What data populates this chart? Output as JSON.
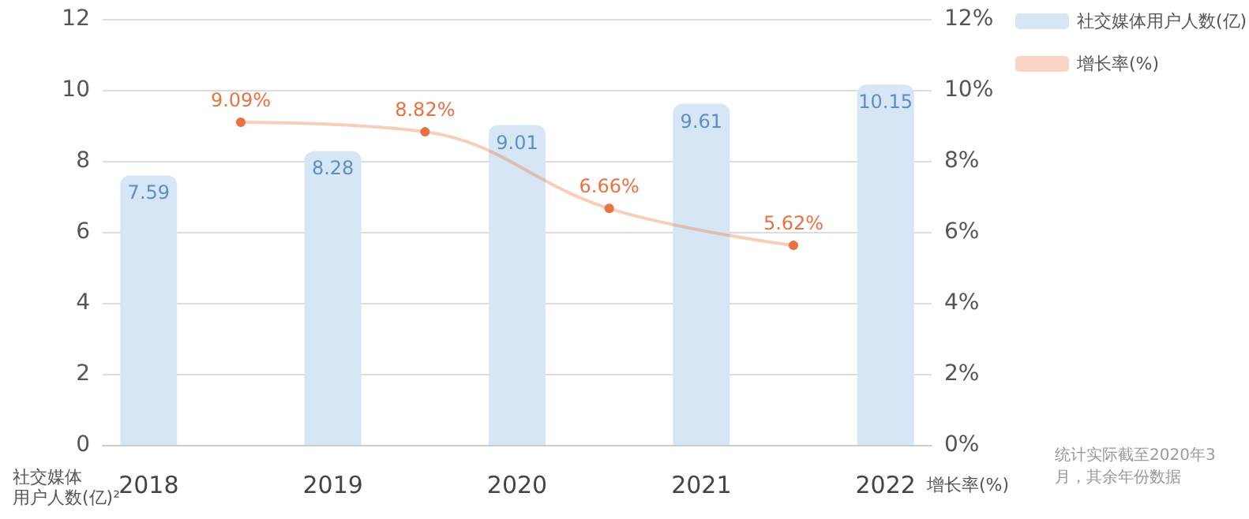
{
  "chart_data": {
    "type": "bar",
    "categories": [
      "2018",
      null,
      "2019",
      null,
      "2020",
      null,
      "2021",
      null,
      "2022"
    ],
    "series": [
      {
        "name": "社交媒体用户人数(亿)",
        "color": "#d6e6f5",
        "values": [
          7.59,
          null,
          8.28,
          null,
          9.01,
          null,
          9.61,
          null,
          10.15
        ]
      },
      {
        "name": "增长率(%)",
        "type": "line",
        "axis": "y2",
        "color": "#e8733f",
        "values": [
          null,
          9.09,
          null,
          8.82,
          null,
          6.66,
          null,
          5.62,
          null
        ],
        "value_labels": [
          null,
          "9.09%",
          null,
          "8.82%",
          null,
          "6.66%",
          null,
          "5.62%",
          null
        ]
      }
    ],
    "data_labels": true,
    "ylabel": "社交媒体用户人数(亿)²",
    "y2label": "增长率(%)",
    "ylim": [
      0,
      12
    ],
    "yticks": [
      0,
      2,
      4,
      6,
      8,
      10,
      12
    ],
    "y2lim": [
      0,
      12
    ],
    "y2ticks": [
      {
        "value": 0,
        "label": "0%"
      },
      {
        "value": 2,
        "label": "2%"
      },
      {
        "value": 4,
        "label": "4%"
      },
      {
        "value": 6,
        "label": "6%"
      },
      {
        "value": 8,
        "label": "8%"
      },
      {
        "value": 10,
        "label": "10%"
      },
      {
        "value": 12,
        "label": "12%"
      }
    ],
    "annotations": [
      "统计实际截至2020年3月，其余年份数据"
    ],
    "grid": "y",
    "legend": "top right",
    "marker": "circle"
  }
}
